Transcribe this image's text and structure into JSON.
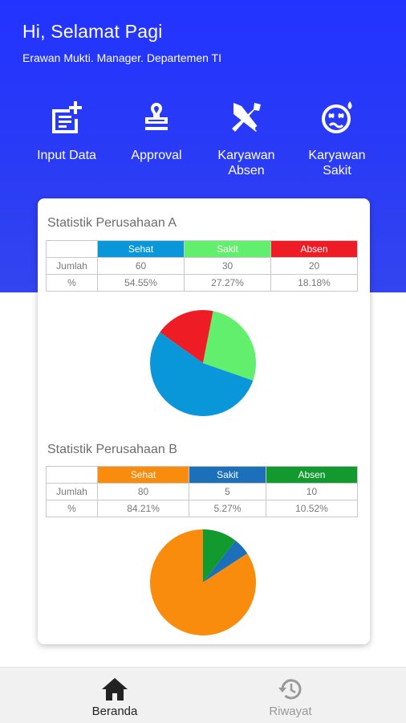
{
  "header": {
    "greeting": "Hi, Selamat Pagi",
    "subtitle": "Erawan Mukti. Manager. Departemen TI"
  },
  "menu": [
    {
      "label": "Input Data",
      "icon": "add-note-icon"
    },
    {
      "label": "Approval",
      "icon": "stamp-icon"
    },
    {
      "label": "Karyawan\nAbsen",
      "icon": "absent-tools-icon"
    },
    {
      "label": "Karyawan\nSakit",
      "icon": "sick-face-icon"
    }
  ],
  "stats": [
    {
      "title": "Statistik Perusahaan A",
      "row_labels": [
        "Jumlah",
        "%"
      ],
      "columns": [
        {
          "label": "Sehat",
          "count": "60",
          "percent": "54.55%",
          "color": "#0a97d9"
        },
        {
          "label": "Sakit",
          "count": "30",
          "percent": "27.27%",
          "color": "#62ef6d"
        },
        {
          "label": "Absen",
          "count": "20",
          "percent": "18.18%",
          "color": "#ee1c24"
        }
      ]
    },
    {
      "title": "Statistik Perusahaan B",
      "row_labels": [
        "Jumlah",
        "%"
      ],
      "columns": [
        {
          "label": "Sehat",
          "count": "80",
          "percent": "84.21%",
          "color": "#f98c0c"
        },
        {
          "label": "Sakit",
          "count": "5",
          "percent": "5.27%",
          "color": "#1c6fb9"
        },
        {
          "label": "Absen",
          "count": "10",
          "percent": "10.52%",
          "color": "#129a2f"
        }
      ]
    }
  ],
  "chart_data": [
    {
      "type": "pie",
      "categories": [
        "Sehat",
        "Sakit",
        "Absen"
      ],
      "values": [
        60,
        30,
        20
      ],
      "colors": [
        "#0a97d9",
        "#62ef6d",
        "#ee1c24"
      ]
    },
    {
      "type": "pie",
      "categories": [
        "Sehat",
        "Sakit",
        "Absen"
      ],
      "values": [
        80,
        5,
        10
      ],
      "colors": [
        "#f98c0c",
        "#1c6fb9",
        "#129a2f"
      ]
    }
  ],
  "nav": [
    {
      "label": "Beranda",
      "icon": "home-icon",
      "active": true
    },
    {
      "label": "Riwayat",
      "icon": "history-icon",
      "active": false
    }
  ],
  "colors": {
    "header_blue": "#2233ff",
    "nav_active": "#222222",
    "nav_inactive": "#999999"
  }
}
